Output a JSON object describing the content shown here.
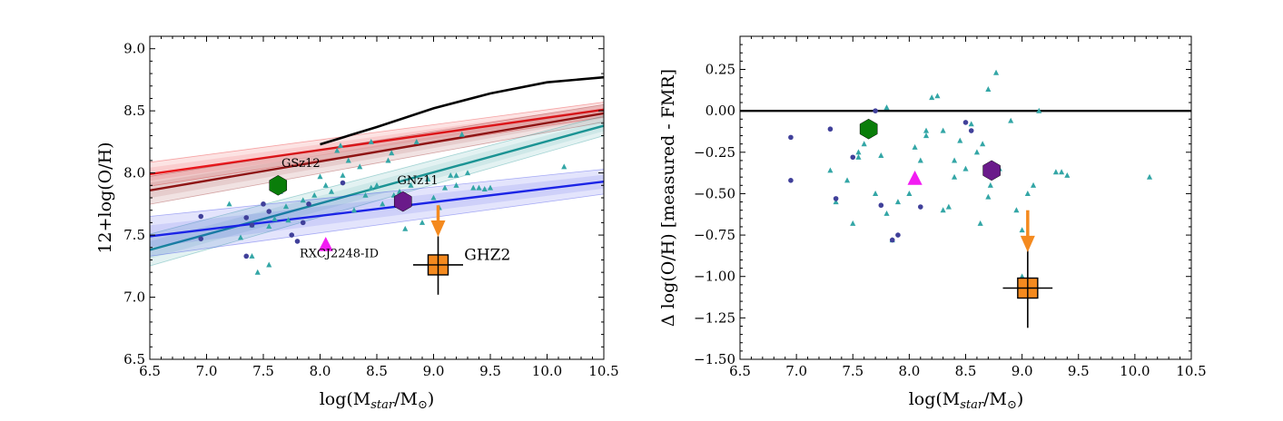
{
  "chart_data": [
    {
      "type": "scatter",
      "title": "",
      "xlabel": "log(M_star/M_sun)",
      "ylabel": "12+log(O/H)",
      "xlim": [
        6.5,
        10.5
      ],
      "ylim": [
        6.5,
        9.1
      ],
      "xticks": [
        "6.5",
        "7.0",
        "7.5",
        "8.0",
        "8.5",
        "9.0",
        "9.5",
        "10.0",
        "10.5"
      ],
      "yticks": [
        "6.5",
        "7.0",
        "7.5",
        "8.0",
        "8.5",
        "9.0"
      ],
      "ytick_values": [
        6.5,
        7.0,
        7.5,
        8.0,
        8.5,
        9.0
      ],
      "colors": {
        "black": "#000000",
        "red": "#e8161b",
        "darkred": "#8e1414",
        "teal": "#1a9393",
        "blue": "#1b24e6",
        "triangle": "#33a6a6",
        "circle": "#40409a",
        "green": "#0a7d0a",
        "purple": "#6a1a8a",
        "magenta": "#f21cf2",
        "orange": "#f48a1f"
      },
      "series": [
        {
          "name": "relation-black",
          "kind": "line",
          "color": "black",
          "x": [
            8.0,
            8.5,
            9.0,
            9.5,
            10.0,
            10.5
          ],
          "y": [
            8.23,
            8.37,
            8.52,
            8.64,
            8.73,
            8.77
          ]
        },
        {
          "name": "relation-red",
          "kind": "band",
          "color": "red",
          "x": [
            6.5,
            10.5
          ],
          "y": [
            7.99,
            8.51
          ],
          "band": 0.06
        },
        {
          "name": "relation-darkred",
          "kind": "band",
          "color": "darkred",
          "x": [
            6.5,
            10.5
          ],
          "y": [
            7.86,
            8.48
          ],
          "band": 0.07
        },
        {
          "name": "relation-teal",
          "kind": "band",
          "color": "teal",
          "x": [
            6.5,
            10.5
          ],
          "y": [
            7.38,
            8.38
          ],
          "band": 0.08
        },
        {
          "name": "relation-blue",
          "kind": "band",
          "color": "blue",
          "x": [
            6.5,
            10.5
          ],
          "y": [
            7.49,
            7.93
          ],
          "band": 0.1
        },
        {
          "name": "sample-triangles",
          "kind": "triangles",
          "color": "triangle",
          "points": [
            [
              7.45,
              7.2
            ],
            [
              7.55,
              7.26
            ],
            [
              7.4,
              7.33
            ],
            [
              7.3,
              7.48
            ],
            [
              7.55,
              7.57
            ],
            [
              7.6,
              7.63
            ],
            [
              7.7,
              7.73
            ],
            [
              7.72,
              7.62
            ],
            [
              7.85,
              7.78
            ],
            [
              7.95,
              7.82
            ],
            [
              8.05,
              7.9
            ],
            [
              8.1,
              7.85
            ],
            [
              8.15,
              8.18
            ],
            [
              8.18,
              8.22
            ],
            [
              8.2,
              7.98
            ],
            [
              8.25,
              8.1
            ],
            [
              8.3,
              7.7
            ],
            [
              8.35,
              8.05
            ],
            [
              8.4,
              7.82
            ],
            [
              8.45,
              7.88
            ],
            [
              8.5,
              7.9
            ],
            [
              8.55,
              7.75
            ],
            [
              8.6,
              8.1
            ],
            [
              8.63,
              8.16
            ],
            [
              8.65,
              7.82
            ],
            [
              8.7,
              7.85
            ],
            [
              8.75,
              7.55
            ],
            [
              8.8,
              7.9
            ],
            [
              8.85,
              8.25
            ],
            [
              8.9,
              7.6
            ],
            [
              8.95,
              7.95
            ],
            [
              9.0,
              7.8
            ],
            [
              9.05,
              7.72
            ],
            [
              9.1,
              7.88
            ],
            [
              9.15,
              7.98
            ],
            [
              9.2,
              7.9
            ],
            [
              9.25,
              8.31
            ],
            [
              9.3,
              8.0
            ],
            [
              9.35,
              7.88
            ],
            [
              9.4,
              7.88
            ],
            [
              9.45,
              7.87
            ],
            [
              9.5,
              7.88
            ],
            [
              10.15,
              8.05
            ],
            [
              7.65,
              7.85
            ],
            [
              7.2,
              7.75
            ],
            [
              7.4,
              7.58
            ],
            [
              8.0,
              7.97
            ],
            [
              8.45,
              8.25
            ],
            [
              9.2,
              7.98
            ]
          ]
        },
        {
          "name": "sample-circles",
          "kind": "circles",
          "color": "circle",
          "points": [
            [
              6.95,
              7.65
            ],
            [
              7.35,
              7.64
            ],
            [
              7.4,
              7.58
            ],
            [
              7.5,
              7.75
            ],
            [
              7.55,
              7.69
            ],
            [
              7.6,
              7.93
            ],
            [
              7.75,
              7.5
            ],
            [
              7.8,
              7.45
            ],
            [
              7.85,
              7.6
            ],
            [
              7.9,
              7.75
            ],
            [
              8.2,
              7.92
            ],
            [
              7.35,
              7.33
            ],
            [
              6.95,
              7.47
            ]
          ]
        },
        {
          "name": "GSz12",
          "kind": "hexagon",
          "color": "green",
          "x": 7.63,
          "y": 7.9
        },
        {
          "name": "GNz11",
          "kind": "hexagon",
          "color": "purple",
          "x": 8.73,
          "y": 7.77
        },
        {
          "name": "RXCJ2248-ID",
          "kind": "triangle-big",
          "color": "magenta",
          "x": 8.05,
          "y": 7.42
        },
        {
          "name": "GHZ2",
          "kind": "square",
          "color": "orange",
          "x": 9.04,
          "y": 7.26,
          "xerr": 0.22,
          "yerr_lo": 0.24,
          "yerr_hi": 0.23
        },
        {
          "name": "GHZ2-upper-limit",
          "kind": "arrow",
          "color": "orange",
          "x": 9.04,
          "y_from": 7.74,
          "y_to": 7.53
        }
      ],
      "annotations": [
        {
          "text": "GSz12",
          "x": 7.66,
          "y": 8.05,
          "size": "small"
        },
        {
          "text": "GNz11",
          "x": 8.68,
          "y": 7.91,
          "size": "small"
        },
        {
          "text": "RXCJ2248-ID",
          "x": 7.82,
          "y": 7.32,
          "size": "small"
        },
        {
          "text": "GHZ2",
          "x": 9.27,
          "y": 7.3,
          "size": "big"
        }
      ]
    },
    {
      "type": "scatter",
      "title": "",
      "xlabel": "log(M_star/M_sun)",
      "ylabel": "Δ log(O/H) [measured - FMR]",
      "xlim": [
        6.5,
        10.5
      ],
      "ylim": [
        -1.5,
        0.45
      ],
      "xticks": [
        "6.5",
        "7.0",
        "7.5",
        "8.0",
        "8.5",
        "9.0",
        "9.5",
        "10.0",
        "10.5"
      ],
      "yticks": [
        "−1.50",
        "−1.25",
        "−1.00",
        "−0.75",
        "−0.50",
        "−0.25",
        "0.00",
        "0.25"
      ],
      "ytick_values": [
        -1.5,
        -1.25,
        -1.0,
        -0.75,
        -0.5,
        -0.25,
        0.0,
        0.25
      ],
      "colors": {
        "black": "#000000",
        "triangle": "#33a6a6",
        "circle": "#40409a",
        "green": "#0a7d0a",
        "purple": "#6a1a8a",
        "magenta": "#f21cf2",
        "orange": "#f48a1f"
      },
      "series": [
        {
          "name": "zero-line",
          "kind": "hline",
          "color": "black",
          "y": 0.0
        },
        {
          "name": "sample-triangles",
          "kind": "triangles",
          "color": "triangle",
          "points": [
            [
              7.3,
              -0.36
            ],
            [
              7.35,
              -0.55
            ],
            [
              7.45,
              -0.42
            ],
            [
              7.5,
              -0.68
            ],
            [
              7.55,
              -0.28
            ],
            [
              7.6,
              -0.2
            ],
            [
              7.7,
              -0.5
            ],
            [
              7.75,
              -0.27
            ],
            [
              7.8,
              -0.62
            ],
            [
              7.85,
              -0.78
            ],
            [
              7.9,
              -0.55
            ],
            [
              8.0,
              -0.5
            ],
            [
              8.05,
              -0.22
            ],
            [
              8.1,
              -0.3
            ],
            [
              8.15,
              -0.12
            ],
            [
              8.2,
              0.08
            ],
            [
              8.25,
              0.09
            ],
            [
              8.3,
              -0.6
            ],
            [
              8.35,
              -0.58
            ],
            [
              8.4,
              -0.3
            ],
            [
              8.45,
              -0.18
            ],
            [
              8.5,
              -0.35
            ],
            [
              8.55,
              -0.08
            ],
            [
              8.6,
              -0.25
            ],
            [
              8.63,
              -0.68
            ],
            [
              8.65,
              -0.2
            ],
            [
              8.7,
              -0.52
            ],
            [
              8.72,
              -0.45
            ],
            [
              8.77,
              0.23
            ],
            [
              8.8,
              -0.35
            ],
            [
              8.9,
              -0.06
            ],
            [
              8.95,
              -0.6
            ],
            [
              9.0,
              -0.72
            ],
            [
              9.05,
              -0.5
            ],
            [
              9.1,
              -0.45
            ],
            [
              9.15,
              0.0
            ],
            [
              9.3,
              -0.37
            ],
            [
              9.35,
              -0.37
            ],
            [
              9.4,
              -0.39
            ],
            [
              10.13,
              -0.4
            ],
            [
              7.55,
              -0.25
            ],
            [
              8.15,
              -0.15
            ],
            [
              8.3,
              -0.12
            ],
            [
              8.7,
              0.13
            ],
            [
              8.4,
              -0.4
            ],
            [
              7.8,
              0.02
            ],
            [
              9.0,
              -1.0
            ]
          ]
        },
        {
          "name": "sample-circles",
          "kind": "circles",
          "color": "circle",
          "points": [
            [
              6.95,
              -0.16
            ],
            [
              6.95,
              -0.42
            ],
            [
              7.3,
              -0.11
            ],
            [
              7.35,
              -0.53
            ],
            [
              7.5,
              -0.28
            ],
            [
              7.65,
              -0.15
            ],
            [
              7.7,
              0.0
            ],
            [
              7.85,
              -0.78
            ],
            [
              7.9,
              -0.75
            ],
            [
              8.1,
              -0.58
            ],
            [
              8.5,
              -0.07
            ],
            [
              8.55,
              -0.12
            ],
            [
              7.75,
              -0.57
            ]
          ]
        },
        {
          "name": "GSz12",
          "kind": "hexagon",
          "color": "green",
          "x": 7.64,
          "y": -0.11
        },
        {
          "name": "GNz11",
          "kind": "hexagon",
          "color": "purple",
          "x": 8.73,
          "y": -0.36
        },
        {
          "name": "RXCJ2248-ID",
          "kind": "triangle-big",
          "color": "magenta",
          "x": 8.05,
          "y": -0.41
        },
        {
          "name": "GHZ2",
          "kind": "square",
          "color": "orange",
          "x": 9.05,
          "y": -1.07,
          "xerr": 0.22,
          "yerr_lo": 0.24,
          "yerr_hi": 0.36
        },
        {
          "name": "GHZ2-upper-limit",
          "kind": "arrow",
          "color": "orange",
          "x": 9.05,
          "y_from": -0.6,
          "y_to": -0.82
        }
      ],
      "annotations": []
    }
  ]
}
